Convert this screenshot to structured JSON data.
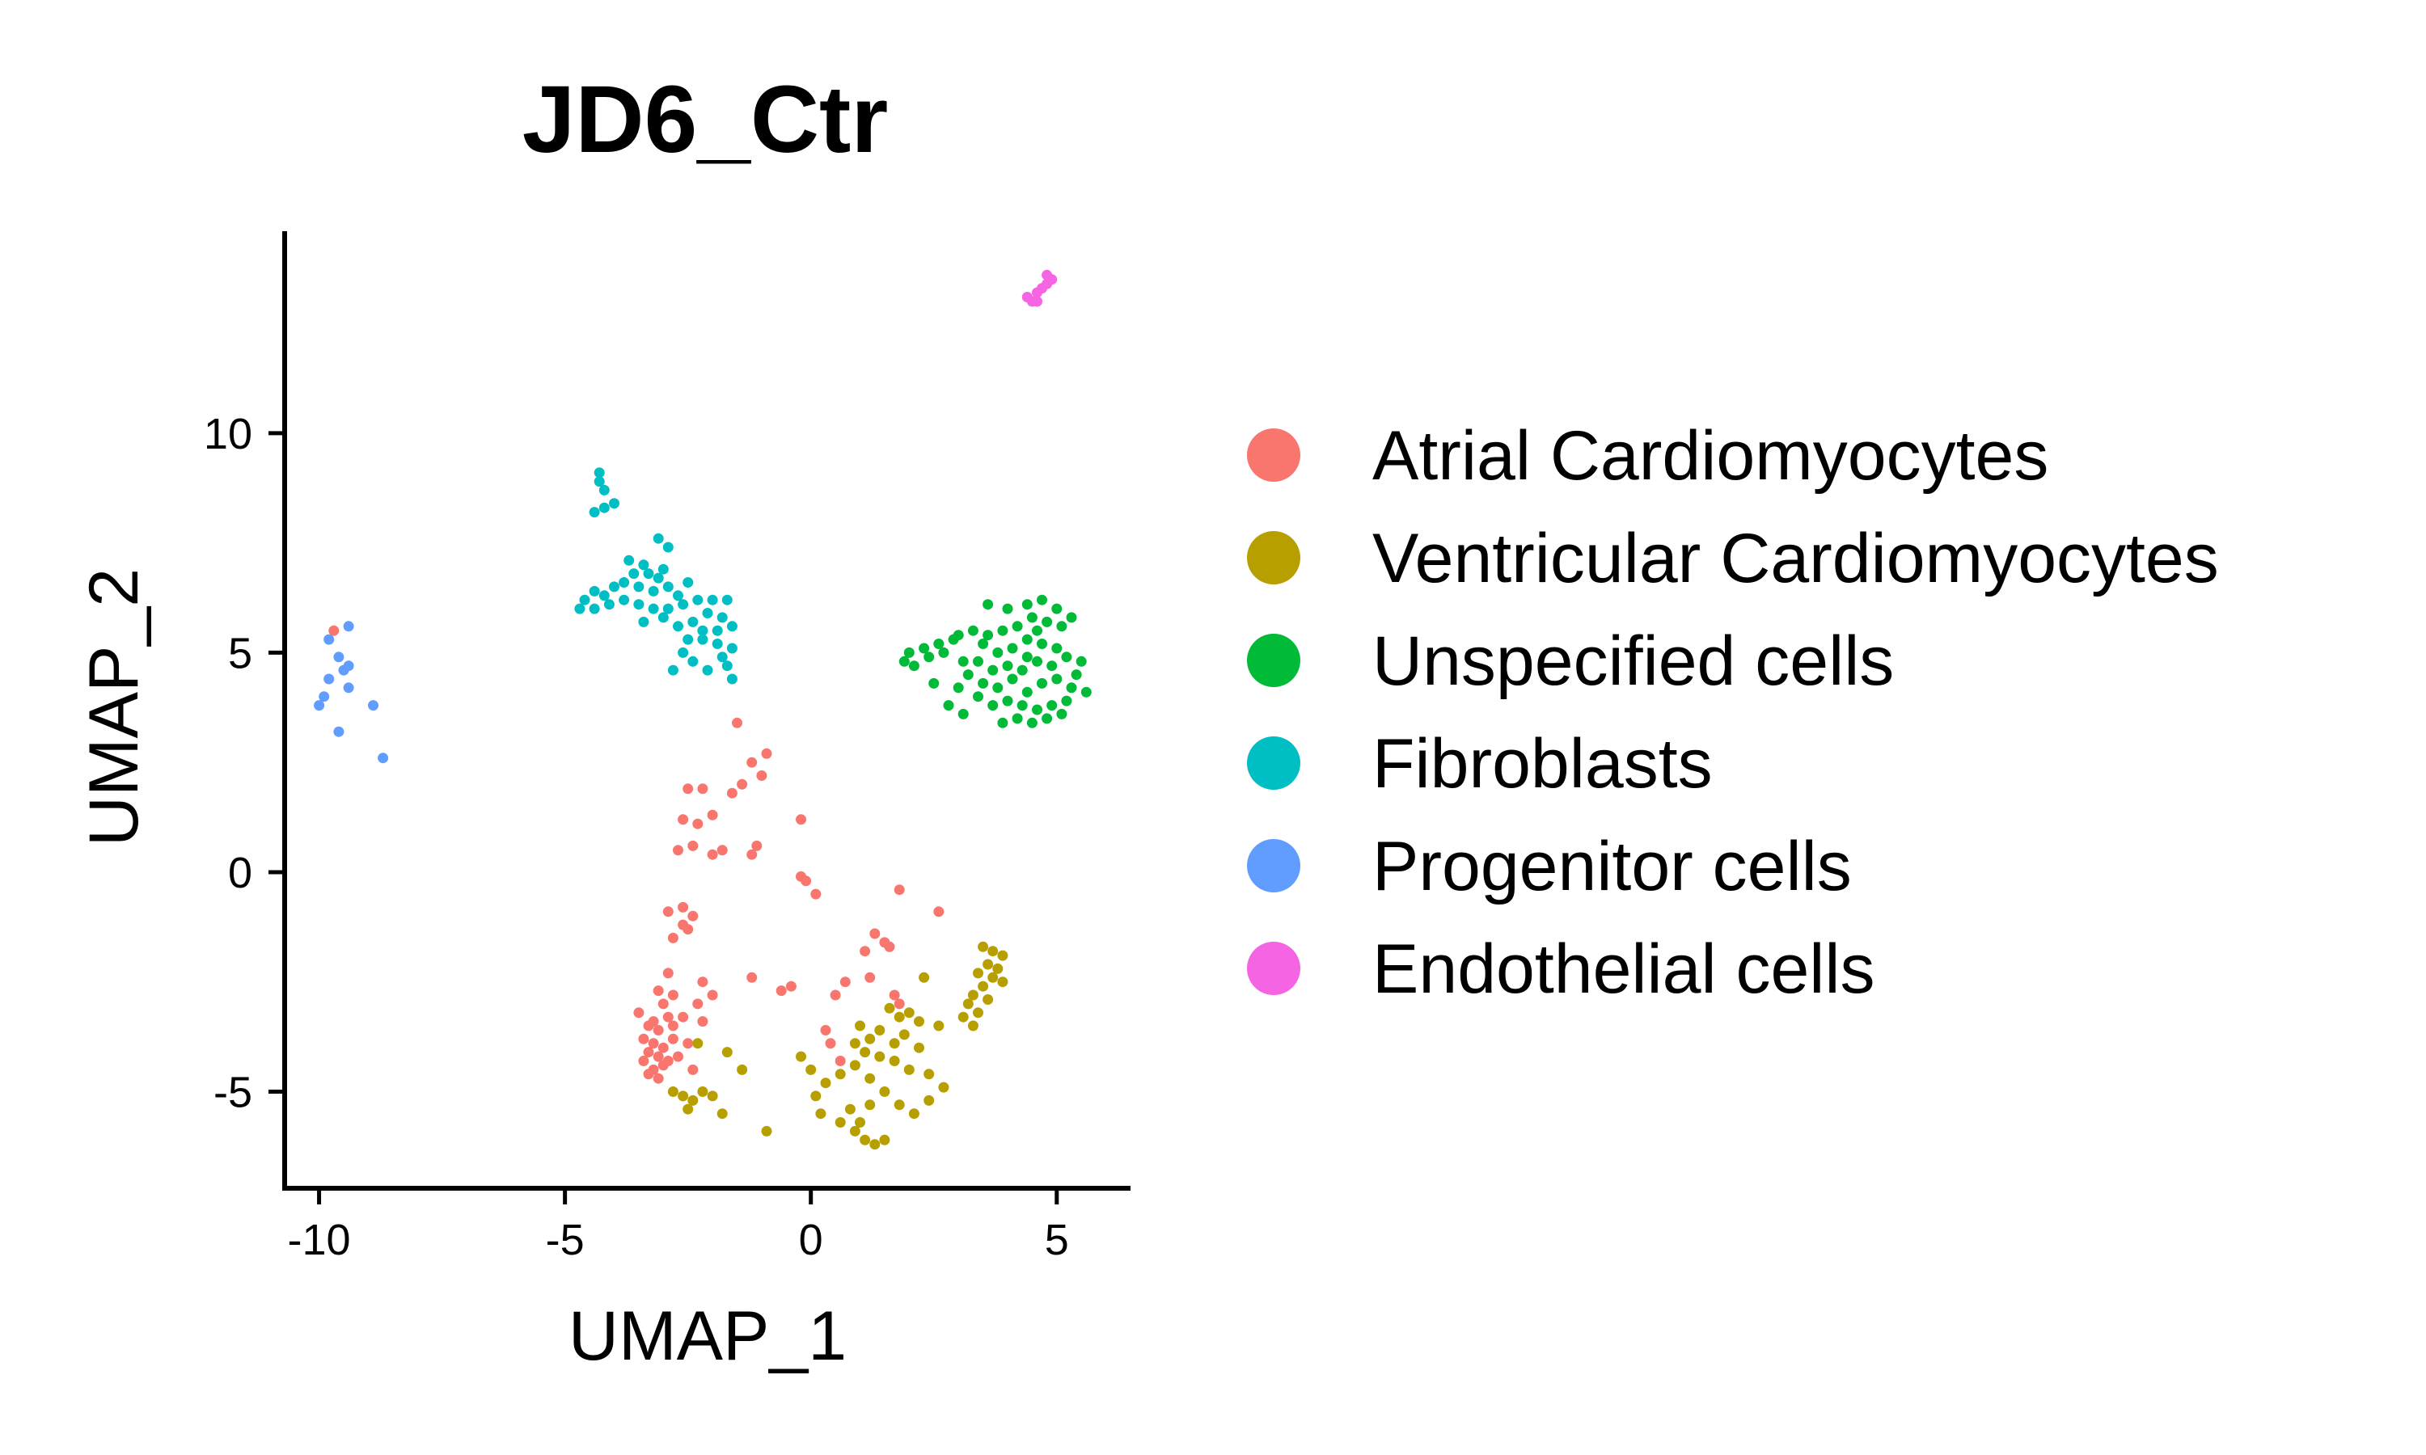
{
  "chart_data": {
    "type": "scatter",
    "title": "JD6_Ctr",
    "xlabel": "UMAP_1",
    "ylabel": "UMAP_2",
    "xlim": [
      -10.7,
      6.5
    ],
    "ylim": [
      -7.2,
      14.6
    ],
    "xticks": [
      -10,
      -5,
      0,
      5
    ],
    "yticks": [
      -5,
      0,
      5,
      10
    ],
    "grid": false,
    "legend_position": "right",
    "series": [
      {
        "name": "Atrial Cardiomyocytes",
        "color": "#F8766D",
        "points": [
          [
            -1.5,
            3.4
          ],
          [
            -1.2,
            2.5
          ],
          [
            -0.9,
            2.7
          ],
          [
            -1.0,
            2.2
          ],
          [
            -1.4,
            2.0
          ],
          [
            -1.6,
            1.8
          ],
          [
            -2.2,
            1.9
          ],
          [
            -2.5,
            1.9
          ],
          [
            -2.0,
            1.3
          ],
          [
            -2.3,
            1.1
          ],
          [
            -2.6,
            1.2
          ],
          [
            -0.2,
            1.2
          ],
          [
            -2.7,
            0.5
          ],
          [
            -2.4,
            0.6
          ],
          [
            -2.0,
            0.4
          ],
          [
            -1.8,
            0.5
          ],
          [
            -1.2,
            0.4
          ],
          [
            -1.1,
            0.6
          ],
          [
            -0.2,
            -0.1
          ],
          [
            -0.1,
            -0.2
          ],
          [
            0.1,
            -0.5
          ],
          [
            1.8,
            -0.4
          ],
          [
            2.6,
            -0.9
          ],
          [
            -2.9,
            -0.9
          ],
          [
            -2.6,
            -0.8
          ],
          [
            -2.4,
            -1.0
          ],
          [
            -2.6,
            -1.2
          ],
          [
            -2.5,
            -1.3
          ],
          [
            -2.8,
            -1.5
          ],
          [
            -2.9,
            -2.3
          ],
          [
            1.3,
            -1.4
          ],
          [
            1.5,
            -1.6
          ],
          [
            1.1,
            -1.8
          ],
          [
            1.6,
            -1.7
          ],
          [
            -2.2,
            -2.5
          ],
          [
            -2.0,
            -2.8
          ],
          [
            -2.3,
            -3.0
          ],
          [
            -1.2,
            -2.4
          ],
          [
            -0.6,
            -2.7
          ],
          [
            -0.4,
            -2.6
          ],
          [
            0.7,
            -2.5
          ],
          [
            0.5,
            -2.8
          ],
          [
            1.2,
            -2.4
          ],
          [
            1.7,
            -2.8
          ],
          [
            1.8,
            -3.0
          ],
          [
            -3.1,
            -2.7
          ],
          [
            -3.0,
            -3.0
          ],
          [
            -2.9,
            -3.3
          ],
          [
            -3.2,
            -3.4
          ],
          [
            -3.3,
            -3.5
          ],
          [
            -3.1,
            -3.6
          ],
          [
            -2.8,
            -3.5
          ],
          [
            -2.6,
            -3.3
          ],
          [
            -3.4,
            -3.8
          ],
          [
            -3.2,
            -3.9
          ],
          [
            -3.0,
            -4.0
          ],
          [
            -2.8,
            -3.8
          ],
          [
            -3.3,
            -4.1
          ],
          [
            -3.1,
            -4.2
          ],
          [
            -2.9,
            -4.3
          ],
          [
            -3.4,
            -4.3
          ],
          [
            -3.2,
            -4.5
          ],
          [
            -3.0,
            -4.4
          ],
          [
            -2.7,
            -4.2
          ],
          [
            -2.5,
            -3.9
          ],
          [
            -3.1,
            -4.7
          ],
          [
            0.4,
            -3.9
          ],
          [
            0.6,
            -4.3
          ],
          [
            0.3,
            -3.6
          ],
          [
            -2.4,
            -4.5
          ],
          [
            -2.8,
            -2.8
          ],
          [
            -3.5,
            -3.2
          ],
          [
            -3.3,
            -4.6
          ],
          [
            -2.2,
            -3.4
          ],
          [
            -9.7,
            5.5
          ]
        ]
      },
      {
        "name": "Ventricular Cardiomyocytes",
        "color": "#B79F00",
        "points": [
          [
            3.5,
            -1.7
          ],
          [
            3.7,
            -1.8
          ],
          [
            3.9,
            -1.9
          ],
          [
            3.6,
            -2.1
          ],
          [
            3.8,
            -2.2
          ],
          [
            3.4,
            -2.3
          ],
          [
            3.7,
            -2.4
          ],
          [
            3.9,
            -2.5
          ],
          [
            3.5,
            -2.6
          ],
          [
            3.3,
            -2.8
          ],
          [
            3.6,
            -2.9
          ],
          [
            3.2,
            -3.0
          ],
          [
            3.4,
            -3.2
          ],
          [
            3.1,
            -3.3
          ],
          [
            3.3,
            -3.5
          ],
          [
            2.3,
            -2.4
          ],
          [
            2.6,
            -3.5
          ],
          [
            2.2,
            -4.0
          ],
          [
            1.6,
            -3.1
          ],
          [
            1.8,
            -3.3
          ],
          [
            2.0,
            -3.2
          ],
          [
            2.2,
            -3.4
          ],
          [
            1.9,
            -3.7
          ],
          [
            1.7,
            -3.9
          ],
          [
            1.4,
            -3.6
          ],
          [
            1.2,
            -3.8
          ],
          [
            1.0,
            -3.5
          ],
          [
            0.9,
            -3.9
          ],
          [
            1.1,
            -4.1
          ],
          [
            1.4,
            -4.2
          ],
          [
            1.7,
            -4.3
          ],
          [
            2.0,
            -4.5
          ],
          [
            2.4,
            -4.6
          ],
          [
            2.7,
            -4.9
          ],
          [
            2.4,
            -5.2
          ],
          [
            2.1,
            -5.5
          ],
          [
            1.8,
            -5.3
          ],
          [
            1.5,
            -5.0
          ],
          [
            1.2,
            -4.7
          ],
          [
            0.9,
            -4.4
          ],
          [
            0.6,
            -4.6
          ],
          [
            0.3,
            -4.8
          ],
          [
            0.1,
            -5.1
          ],
          [
            0.2,
            -5.5
          ],
          [
            0.6,
            -5.7
          ],
          [
            0.9,
            -5.9
          ],
          [
            1.1,
            -6.1
          ],
          [
            1.3,
            -6.2
          ],
          [
            1.5,
            -6.1
          ],
          [
            1.0,
            -5.7
          ],
          [
            0.8,
            -5.4
          ],
          [
            1.2,
            -5.3
          ],
          [
            0.0,
            -4.5
          ],
          [
            -0.2,
            -4.2
          ],
          [
            -1.4,
            -4.5
          ],
          [
            -2.2,
            -5.0
          ],
          [
            -2.4,
            -5.2
          ],
          [
            -2.6,
            -5.1
          ],
          [
            -2.8,
            -5.0
          ],
          [
            -2.5,
            -5.4
          ],
          [
            -2.0,
            -5.1
          ],
          [
            -1.8,
            -5.5
          ],
          [
            -0.9,
            -5.9
          ],
          [
            -1.7,
            -4.1
          ],
          [
            -2.3,
            -3.9
          ]
        ]
      },
      {
        "name": "Unspecified cells",
        "color": "#00BA38",
        "points": [
          [
            3.6,
            6.1
          ],
          [
            4.0,
            6.0
          ],
          [
            4.4,
            6.1
          ],
          [
            4.7,
            6.2
          ],
          [
            5.0,
            6.0
          ],
          [
            5.3,
            5.8
          ],
          [
            5.1,
            5.6
          ],
          [
            4.8,
            5.7
          ],
          [
            4.5,
            5.8
          ],
          [
            4.2,
            5.6
          ],
          [
            3.9,
            5.5
          ],
          [
            3.6,
            5.4
          ],
          [
            3.3,
            5.5
          ],
          [
            3.5,
            5.2
          ],
          [
            3.8,
            5.0
          ],
          [
            4.1,
            5.1
          ],
          [
            4.4,
            5.3
          ],
          [
            4.7,
            5.2
          ],
          [
            5.0,
            5.1
          ],
          [
            5.2,
            4.9
          ],
          [
            4.9,
            4.7
          ],
          [
            4.6,
            4.8
          ],
          [
            4.3,
            4.6
          ],
          [
            4.0,
            4.7
          ],
          [
            3.7,
            4.6
          ],
          [
            3.4,
            4.8
          ],
          [
            3.2,
            4.5
          ],
          [
            3.5,
            4.3
          ],
          [
            3.8,
            4.2
          ],
          [
            4.1,
            4.4
          ],
          [
            4.4,
            4.1
          ],
          [
            4.7,
            4.3
          ],
          [
            5.0,
            4.4
          ],
          [
            5.3,
            4.2
          ],
          [
            5.6,
            4.1
          ],
          [
            5.4,
            4.5
          ],
          [
            5.2,
            3.9
          ],
          [
            4.9,
            3.8
          ],
          [
            4.6,
            3.7
          ],
          [
            4.3,
            3.8
          ],
          [
            4.0,
            3.9
          ],
          [
            3.7,
            3.8
          ],
          [
            3.4,
            4.0
          ],
          [
            3.0,
            4.2
          ],
          [
            3.1,
            4.8
          ],
          [
            4.5,
            3.4
          ],
          [
            4.2,
            3.5
          ],
          [
            4.8,
            3.5
          ],
          [
            5.1,
            3.6
          ],
          [
            4.4,
            4.9
          ],
          [
            2.0,
            5.0
          ],
          [
            2.3,
            5.1
          ],
          [
            2.6,
            5.2
          ],
          [
            2.9,
            5.3
          ],
          [
            1.9,
            4.8
          ],
          [
            2.1,
            4.7
          ],
          [
            2.4,
            4.9
          ],
          [
            2.7,
            5.0
          ],
          [
            2.5,
            4.3
          ],
          [
            2.8,
            3.8
          ],
          [
            3.1,
            3.6
          ],
          [
            3.9,
            3.4
          ],
          [
            4.6,
            5.5
          ],
          [
            3.0,
            5.4
          ],
          [
            5.5,
            4.8
          ]
        ]
      },
      {
        "name": "Fibroblasts",
        "color": "#00BFC4",
        "points": [
          [
            -4.3,
            9.1
          ],
          [
            -4.3,
            8.9
          ],
          [
            -4.2,
            8.7
          ],
          [
            -4.2,
            8.3
          ],
          [
            -4.4,
            8.2
          ],
          [
            -4.0,
            8.4
          ],
          [
            -3.1,
            7.6
          ],
          [
            -2.9,
            7.4
          ],
          [
            -3.7,
            7.1
          ],
          [
            -3.4,
            7.0
          ],
          [
            -3.6,
            6.8
          ],
          [
            -3.3,
            6.8
          ],
          [
            -3.1,
            6.7
          ],
          [
            -3.8,
            6.6
          ],
          [
            -4.0,
            6.5
          ],
          [
            -3.5,
            6.5
          ],
          [
            -3.2,
            6.4
          ],
          [
            -2.9,
            6.5
          ],
          [
            -2.7,
            6.3
          ],
          [
            -4.4,
            6.4
          ],
          [
            -4.2,
            6.3
          ],
          [
            -4.6,
            6.2
          ],
          [
            -4.7,
            6.0
          ],
          [
            -4.4,
            6.0
          ],
          [
            -4.1,
            6.1
          ],
          [
            -3.8,
            6.2
          ],
          [
            -3.5,
            6.1
          ],
          [
            -3.2,
            6.0
          ],
          [
            -2.9,
            6.0
          ],
          [
            -2.6,
            6.1
          ],
          [
            -2.3,
            6.2
          ],
          [
            -2.0,
            6.2
          ],
          [
            -1.7,
            6.2
          ],
          [
            -2.1,
            5.9
          ],
          [
            -1.8,
            5.8
          ],
          [
            -2.4,
            5.7
          ],
          [
            -2.7,
            5.6
          ],
          [
            -2.2,
            5.5
          ],
          [
            -1.9,
            5.5
          ],
          [
            -1.6,
            5.6
          ],
          [
            -2.5,
            5.3
          ],
          [
            -2.2,
            5.3
          ],
          [
            -1.9,
            5.2
          ],
          [
            -1.6,
            5.1
          ],
          [
            -1.8,
            4.9
          ],
          [
            -2.4,
            4.8
          ],
          [
            -2.1,
            4.6
          ],
          [
            -1.7,
            4.7
          ],
          [
            -2.6,
            5.0
          ],
          [
            -3.0,
            5.8
          ],
          [
            -3.4,
            5.7
          ],
          [
            -2.8,
            4.6
          ],
          [
            -1.6,
            4.4
          ],
          [
            -3.0,
            6.9
          ],
          [
            -2.5,
            6.6
          ]
        ]
      },
      {
        "name": "Progenitor cells",
        "color": "#619CFF",
        "points": [
          [
            -9.4,
            5.6
          ],
          [
            -9.8,
            5.3
          ],
          [
            -9.6,
            4.9
          ],
          [
            -9.5,
            4.6
          ],
          [
            -9.8,
            4.4
          ],
          [
            -9.4,
            4.2
          ],
          [
            -9.9,
            4.0
          ],
          [
            -10.0,
            3.8
          ],
          [
            -8.9,
            3.8
          ],
          [
            -9.6,
            3.2
          ],
          [
            -8.7,
            2.6
          ],
          [
            -9.4,
            4.7
          ]
        ]
      },
      {
        "name": "Endothelial cells",
        "color": "#F564E3",
        "points": [
          [
            4.4,
            13.1
          ],
          [
            4.5,
            13.0
          ],
          [
            4.6,
            13.2
          ],
          [
            4.7,
            13.3
          ],
          [
            4.8,
            13.4
          ],
          [
            4.9,
            13.5
          ],
          [
            4.6,
            13.0
          ],
          [
            4.8,
            13.6
          ]
        ]
      }
    ]
  }
}
